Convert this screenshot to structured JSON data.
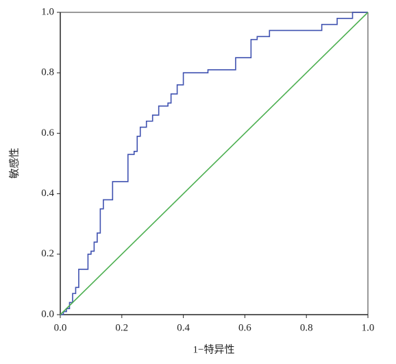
{
  "chart_data": {
    "type": "line",
    "xlabel": "1−特异性",
    "ylabel": "敏感性",
    "xlim": [
      0,
      1
    ],
    "ylim": [
      0,
      1
    ],
    "xticks": [
      {
        "value": 0,
        "label": "0.0"
      },
      {
        "value": 0.2,
        "label": "0.2"
      },
      {
        "value": 0.4,
        "label": "0.4"
      },
      {
        "value": 0.6,
        "label": "0.6"
      },
      {
        "value": 0.8,
        "label": "0.8"
      },
      {
        "value": 1,
        "label": "1.0"
      }
    ],
    "yticks": [
      {
        "value": 0,
        "label": "0.0"
      },
      {
        "value": 0.2,
        "label": "0.2"
      },
      {
        "value": 0.4,
        "label": "0.4"
      },
      {
        "value": 0.6,
        "label": "0.6"
      },
      {
        "value": 0.8,
        "label": "0.8"
      },
      {
        "value": 1,
        "label": "1.0"
      }
    ],
    "grid": false,
    "series": [
      {
        "color": "#3f51b0",
        "step": true,
        "x": [
          0,
          0.01,
          0.02,
          0.03,
          0.04,
          0.05,
          0.06,
          0.08,
          0.09,
          0.1,
          0.11,
          0.12,
          0.13,
          0.13,
          0.14,
          0.16,
          0.17,
          0.21,
          0.22,
          0.24,
          0.25,
          0.26,
          0.28,
          0.3,
          0.32,
          0.35,
          0.36,
          0.38,
          0.4,
          0.46,
          0.48,
          0.53,
          0.57,
          0.62,
          0.64,
          0.68,
          0.8,
          0.85,
          0.9,
          0.95,
          1
        ],
        "values": [
          0,
          0.01,
          0.02,
          0.04,
          0.07,
          0.09,
          0.15,
          0.15,
          0.2,
          0.21,
          0.24,
          0.27,
          0.3,
          0.35,
          0.38,
          0.38,
          0.44,
          0.44,
          0.53,
          0.54,
          0.59,
          0.62,
          0.64,
          0.66,
          0.69,
          0.7,
          0.73,
          0.76,
          0.8,
          0.8,
          0.81,
          0.81,
          0.85,
          0.91,
          0.92,
          0.94,
          0.94,
          0.96,
          0.98,
          1,
          1
        ]
      },
      {
        "color": "#4caf50",
        "step": false,
        "x": [
          0,
          1
        ],
        "values": [
          0,
          1
        ]
      }
    ]
  }
}
